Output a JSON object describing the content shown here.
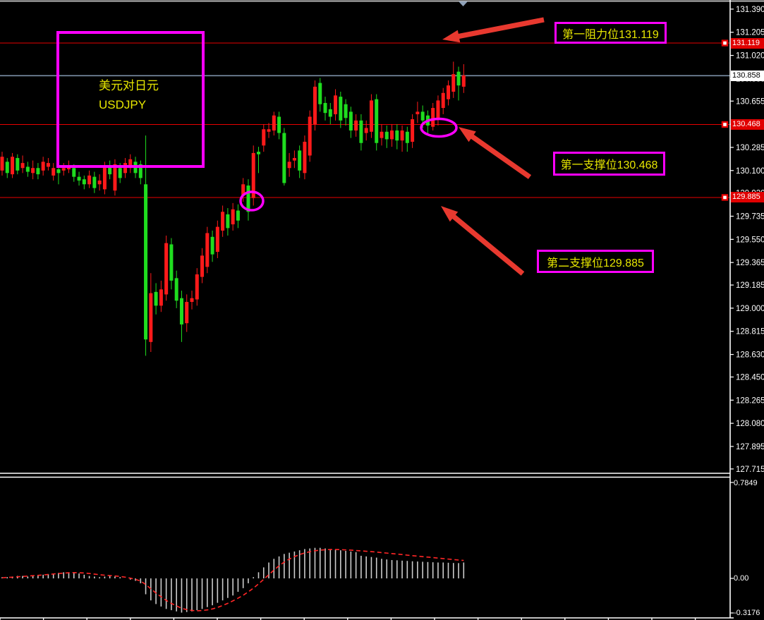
{
  "window": {
    "background": "#000000"
  },
  "symbol_box": {
    "line1": "美元对日元",
    "line2": "USDJPY"
  },
  "annotations": [
    {
      "id": "resistance1",
      "text": "第一阻力位131.119"
    },
    {
      "id": "support1",
      "text": "第一支撑位130.468"
    },
    {
      "id": "support2",
      "text": "第二支撑位129.885"
    }
  ],
  "price_axis": {
    "current_badge": {
      "label": "130.858",
      "price": 130.858
    },
    "level_badges": [
      {
        "label": "131.119",
        "price": 131.119
      },
      {
        "label": "130.468",
        "price": 130.468
      },
      {
        "label": "129.885",
        "price": 129.885
      }
    ],
    "ticks": [
      {
        "label": "131.390",
        "price": 131.39
      },
      {
        "label": "131.205",
        "price": 131.205
      },
      {
        "label": "131.020",
        "price": 131.02
      },
      {
        "label": "130.835",
        "price": 130.835
      },
      {
        "label": "130.655",
        "price": 130.655
      },
      {
        "label": "130.470",
        "price": 130.47
      },
      {
        "label": "130.285",
        "price": 130.285
      },
      {
        "label": "130.100",
        "price": 130.1
      },
      {
        "label": "129.920",
        "price": 129.92
      },
      {
        "label": "129.735",
        "price": 129.735
      },
      {
        "label": "129.550",
        "price": 129.55
      },
      {
        "label": "129.365",
        "price": 129.365
      },
      {
        "label": "129.185",
        "price": 129.185
      },
      {
        "label": "129.000",
        "price": 129.0
      },
      {
        "label": "128.815",
        "price": 128.815
      },
      {
        "label": "128.630",
        "price": 128.63
      },
      {
        "label": "128.450",
        "price": 128.45
      },
      {
        "label": "128.265",
        "price": 128.265
      },
      {
        "label": "128.080",
        "price": 128.08
      },
      {
        "label": "127.895",
        "price": 127.895
      },
      {
        "label": "127.715",
        "price": 127.715
      }
    ]
  },
  "indicator_axis": {
    "max": "0.7849",
    "zero": "0.00",
    "min": "-0.3176"
  },
  "colors": {
    "bull": "#ff1a1a",
    "bear": "#1fdd1f",
    "level_line": "#e80000",
    "current_line": "#7d90a8",
    "magenta": "#ff00ff",
    "yellow_text": "#e6e600",
    "arrow_red": "#e8392f",
    "histogram": "#cccccc",
    "signal_line": "#ff2626",
    "axis_text": "#ffffff",
    "badge_red_bg": "#e00000",
    "badge_white_bg": "#ffffff"
  },
  "chart_data": {
    "type": "candlestick",
    "symbol": "USDJPY",
    "title": "美元对日元 USDJPY",
    "color_convention": "red = up, green = down (Chinese convention)",
    "y_range": [
      127.715,
      131.39
    ],
    "levels": {
      "resistance1": 131.119,
      "support1": 130.468,
      "support2": 129.885,
      "current_price": 130.858
    },
    "candles_ohlc": [
      [
        130.1,
        130.25,
        130.06,
        130.21
      ],
      [
        130.17,
        130.2,
        130.04,
        130.08
      ],
      [
        130.07,
        130.24,
        130.04,
        130.21
      ],
      [
        130.2,
        130.23,
        130.07,
        130.1
      ],
      [
        130.12,
        130.22,
        130.08,
        130.16
      ],
      [
        130.13,
        130.17,
        130.05,
        130.09
      ],
      [
        130.08,
        130.18,
        130.03,
        130.12
      ],
      [
        130.12,
        130.16,
        130.03,
        130.07
      ],
      [
        130.1,
        130.21,
        130.06,
        130.17
      ],
      [
        130.13,
        130.2,
        130.1,
        130.16
      ],
      [
        130.06,
        130.16,
        130.02,
        130.12
      ],
      [
        130.11,
        130.14,
        129.99,
        130.08
      ],
      [
        130.1,
        130.16,
        130.06,
        130.12
      ],
      [
        130.11,
        130.18,
        130.08,
        130.14
      ],
      [
        130.12,
        130.15,
        130.01,
        130.05
      ],
      [
        130.05,
        130.09,
        129.98,
        130.02
      ],
      [
        130.03,
        130.06,
        129.95,
        129.99
      ],
      [
        129.99,
        130.1,
        129.96,
        130.06
      ],
      [
        130.05,
        130.09,
        129.92,
        129.96
      ],
      [
        129.99,
        130.07,
        129.94,
        130.02
      ],
      [
        129.95,
        130.17,
        129.91,
        130.14
      ],
      [
        130.14,
        130.18,
        130.03,
        130.07
      ],
      [
        129.94,
        130.19,
        129.9,
        130.15
      ],
      [
        130.12,
        130.16,
        130.0,
        130.04
      ],
      [
        130.08,
        130.2,
        130.04,
        130.16
      ],
      [
        130.12,
        130.23,
        130.08,
        130.19
      ],
      [
        130.17,
        130.21,
        130.04,
        130.08
      ],
      [
        130.15,
        130.18,
        129.99,
        130.04
      ],
      [
        129.99,
        130.38,
        128.62,
        128.75
      ],
      [
        128.73,
        129.28,
        128.65,
        129.12
      ],
      [
        129.13,
        129.2,
        128.95,
        129.02
      ],
      [
        129.02,
        129.22,
        128.97,
        129.15
      ],
      [
        129.11,
        129.58,
        129.06,
        129.52
      ],
      [
        129.51,
        129.56,
        129.15,
        129.22
      ],
      [
        129.24,
        129.3,
        129.0,
        129.06
      ],
      [
        129.08,
        129.14,
        128.73,
        128.87
      ],
      [
        128.88,
        129.11,
        128.81,
        129.05
      ],
      [
        129.05,
        129.14,
        128.99,
        129.08
      ],
      [
        129.07,
        129.32,
        129.02,
        129.27
      ],
      [
        129.25,
        129.48,
        129.2,
        129.42
      ],
      [
        129.33,
        129.65,
        129.28,
        129.6
      ],
      [
        129.57,
        129.62,
        129.37,
        129.43
      ],
      [
        129.45,
        129.7,
        129.4,
        129.65
      ],
      [
        129.62,
        129.82,
        129.57,
        129.77
      ],
      [
        129.75,
        129.8,
        129.58,
        129.64
      ],
      [
        129.67,
        129.84,
        129.62,
        129.79
      ],
      [
        129.78,
        129.83,
        129.64,
        129.7
      ],
      [
        129.9,
        130.04,
        129.85,
        129.99
      ],
      [
        129.98,
        130.03,
        129.7,
        129.77
      ],
      [
        129.88,
        130.3,
        129.82,
        130.24
      ],
      [
        130.25,
        130.29,
        130.08,
        130.23
      ],
      [
        130.3,
        130.47,
        130.25,
        130.43
      ],
      [
        130.41,
        130.48,
        130.36,
        130.43
      ],
      [
        130.42,
        130.57,
        130.38,
        130.54
      ],
      [
        130.53,
        130.57,
        130.35,
        130.4
      ],
      [
        130.4,
        130.44,
        129.98,
        130.0
      ],
      [
        130.12,
        130.24,
        130.05,
        130.17
      ],
      [
        130.18,
        130.26,
        130.12,
        130.2
      ],
      [
        130.26,
        130.3,
        130.04,
        130.1
      ],
      [
        130.08,
        130.38,
        130.03,
        130.33
      ],
      [
        130.22,
        130.58,
        130.17,
        130.53
      ],
      [
        130.47,
        130.82,
        130.42,
        130.77
      ],
      [
        130.8,
        130.84,
        130.57,
        130.63
      ],
      [
        130.64,
        130.69,
        130.5,
        130.56
      ],
      [
        130.59,
        130.64,
        130.47,
        130.53
      ],
      [
        130.55,
        130.75,
        130.5,
        130.7
      ],
      [
        130.69,
        130.73,
        130.44,
        130.5
      ],
      [
        130.63,
        130.67,
        130.46,
        130.52
      ],
      [
        130.57,
        130.61,
        130.36,
        130.42
      ],
      [
        130.42,
        130.55,
        130.37,
        130.5
      ],
      [
        130.5,
        130.55,
        130.26,
        130.32
      ],
      [
        130.4,
        130.5,
        130.34,
        130.44
      ],
      [
        130.41,
        130.71,
        130.36,
        130.66
      ],
      [
        130.67,
        130.71,
        130.26,
        130.32
      ],
      [
        130.36,
        130.47,
        130.3,
        130.41
      ],
      [
        130.41,
        130.46,
        130.28,
        130.35
      ],
      [
        130.35,
        130.47,
        130.29,
        130.42
      ],
      [
        130.42,
        130.47,
        130.27,
        130.34
      ],
      [
        130.34,
        130.46,
        130.25,
        130.42
      ],
      [
        130.41,
        130.45,
        130.25,
        130.32
      ],
      [
        130.33,
        130.55,
        130.28,
        130.51
      ],
      [
        130.55,
        130.65,
        130.48,
        130.57
      ],
      [
        130.57,
        130.62,
        130.44,
        130.5
      ],
      [
        130.54,
        130.58,
        130.38,
        130.46
      ],
      [
        130.45,
        130.64,
        130.42,
        130.6
      ],
      [
        130.52,
        130.7,
        130.46,
        130.66
      ],
      [
        130.6,
        130.76,
        130.55,
        130.72
      ],
      [
        130.67,
        130.82,
        130.62,
        130.78
      ],
      [
        130.73,
        130.97,
        130.68,
        130.87
      ],
      [
        130.89,
        130.93,
        130.66,
        130.78
      ],
      [
        130.77,
        130.95,
        130.72,
        130.86
      ]
    ],
    "indicator": {
      "type": "macd_histogram_with_signal",
      "axis_range": [
        -0.3176,
        0.7849
      ],
      "histogram": [
        0.01,
        0.01,
        0.015,
        0.02,
        0.02,
        0.015,
        0.02,
        0.025,
        0.03,
        0.035,
        0.04,
        0.045,
        0.05,
        0.05,
        0.045,
        0.04,
        0.03,
        0.02,
        0.015,
        0.01,
        0.015,
        0.02,
        0.015,
        0.01,
        0.0,
        -0.01,
        -0.02,
        -0.04,
        -0.13,
        -0.18,
        -0.21,
        -0.23,
        -0.25,
        -0.26,
        -0.27,
        -0.28,
        -0.275,
        -0.27,
        -0.26,
        -0.25,
        -0.235,
        -0.22,
        -0.2,
        -0.18,
        -0.16,
        -0.14,
        -0.11,
        -0.08,
        -0.04,
        0.01,
        0.05,
        0.09,
        0.13,
        0.16,
        0.18,
        0.2,
        0.21,
        0.22,
        0.23,
        0.24,
        0.245,
        0.25,
        0.25,
        0.245,
        0.24,
        0.235,
        0.23,
        0.225,
        0.22,
        0.215,
        0.185,
        0.18,
        0.175,
        0.17,
        0.16,
        0.155,
        0.15,
        0.148,
        0.145,
        0.143,
        0.14,
        0.138,
        0.136,
        0.134,
        0.132,
        0.13,
        0.13,
        0.128,
        0.126,
        0.125,
        0.13
      ],
      "signal": [
        0.005,
        0.008,
        0.01,
        0.013,
        0.016,
        0.019,
        0.022,
        0.025,
        0.028,
        0.032,
        0.036,
        0.04,
        0.043,
        0.046,
        0.047,
        0.046,
        0.044,
        0.04,
        0.035,
        0.03,
        0.026,
        0.023,
        0.02,
        0.016,
        0.01,
        0.002,
        -0.008,
        -0.022,
        -0.05,
        -0.085,
        -0.12,
        -0.15,
        -0.18,
        -0.205,
        -0.225,
        -0.245,
        -0.255,
        -0.262,
        -0.265,
        -0.263,
        -0.258,
        -0.25,
        -0.238,
        -0.222,
        -0.204,
        -0.184,
        -0.162,
        -0.138,
        -0.11,
        -0.08,
        -0.045,
        -0.008,
        0.03,
        0.068,
        0.103,
        0.133,
        0.158,
        0.178,
        0.195,
        0.208,
        0.218,
        0.226,
        0.231,
        0.234,
        0.236,
        0.236,
        0.235,
        0.233,
        0.231,
        0.228,
        0.225,
        0.222,
        0.219,
        0.215,
        0.211,
        0.207,
        0.203,
        0.199,
        0.195,
        0.19,
        0.186,
        0.182,
        0.178,
        0.174,
        0.17,
        0.166,
        0.162,
        0.158,
        0.154,
        0.15,
        0.147
      ]
    }
  }
}
